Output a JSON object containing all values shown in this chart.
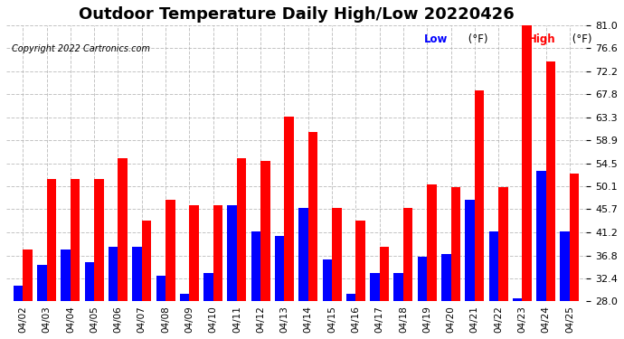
{
  "title": "Outdoor Temperature Daily High/Low 20220426",
  "copyright": "Copyright 2022 Cartronics.com",
  "legend_low": "Low",
  "legend_high": "High",
  "legend_unit": "(°F)",
  "dates": [
    "04/02",
    "04/03",
    "04/04",
    "04/05",
    "04/06",
    "04/07",
    "04/08",
    "04/09",
    "04/10",
    "04/11",
    "04/12",
    "04/13",
    "04/14",
    "04/15",
    "04/16",
    "04/17",
    "04/18",
    "04/19",
    "04/20",
    "04/21",
    "04/22",
    "04/23",
    "04/24",
    "04/25"
  ],
  "highs": [
    38.0,
    51.5,
    51.5,
    51.5,
    55.5,
    43.5,
    47.5,
    46.5,
    46.5,
    55.5,
    55.0,
    63.5,
    60.5,
    46.0,
    43.5,
    38.5,
    46.0,
    50.5,
    50.0,
    68.5,
    50.0,
    81.0,
    74.0,
    52.5
  ],
  "lows": [
    31.0,
    35.0,
    38.0,
    35.5,
    38.5,
    38.5,
    33.0,
    29.5,
    33.5,
    46.5,
    41.5,
    40.5,
    46.0,
    36.0,
    29.5,
    33.5,
    33.5,
    36.5,
    37.0,
    47.5,
    41.5,
    28.5,
    53.0,
    41.5
  ],
  "high_color": "#ff0000",
  "low_color": "#0000ff",
  "background_color": "#ffffff",
  "grid_color": "#aaaaaa",
  "title_fontsize": 13,
  "ylabel": "°F",
  "ylim_min": 28.0,
  "ylim_max": 81.0,
  "yticks": [
    28.0,
    32.4,
    36.8,
    41.2,
    45.7,
    50.1,
    54.5,
    58.9,
    63.3,
    67.8,
    72.2,
    76.6,
    81.0
  ]
}
